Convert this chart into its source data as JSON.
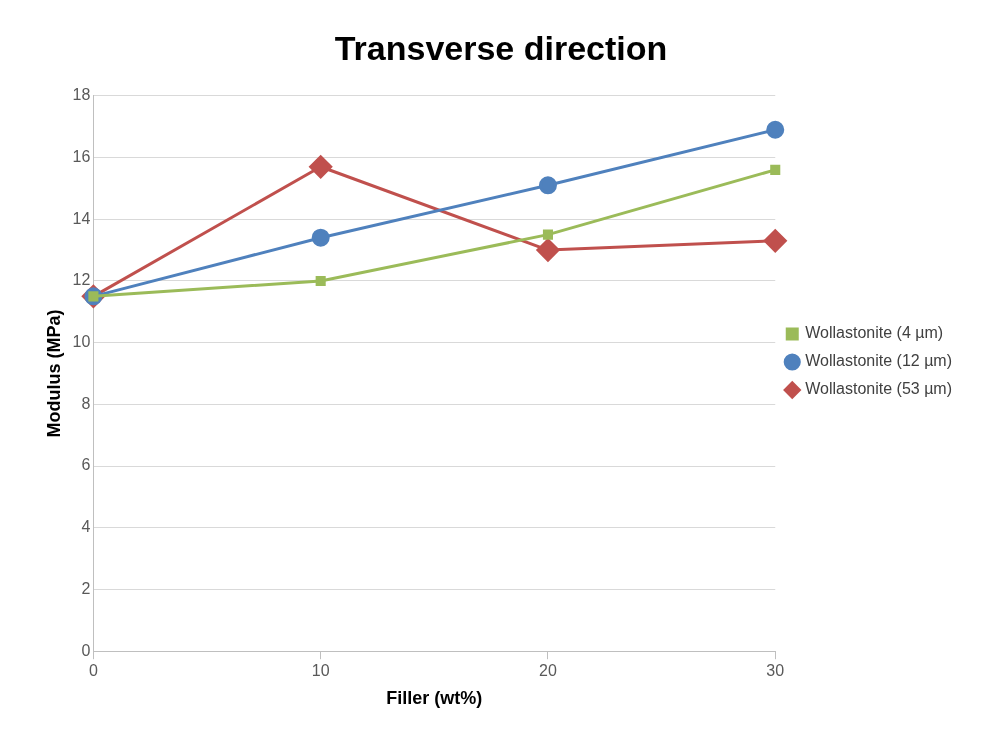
{
  "chart_data": {
    "type": "line",
    "title": "Transverse direction",
    "xlabel": "Filler (wt%)",
    "ylabel": "Modulus (MPa)",
    "x": [
      0,
      10,
      20,
      30
    ],
    "series": [
      {
        "name": "Wollastonite (4 µm)",
        "color": "#9bbb59",
        "marker": "square",
        "values": [
          11.5,
          12.0,
          13.5,
          15.6
        ]
      },
      {
        "name": "Wollastonite (12 µm)",
        "color": "#4f81bd",
        "marker": "circle",
        "values": [
          11.5,
          13.4,
          15.1,
          16.9
        ]
      },
      {
        "name": "Wollastonite (53 µm)",
        "color": "#c0504d",
        "marker": "diamond",
        "values": [
          11.5,
          15.7,
          13.0,
          13.3
        ]
      }
    ],
    "xlim": [
      0,
      30
    ],
    "xticks": [
      0,
      10,
      20,
      30
    ],
    "ylim": [
      0,
      18
    ],
    "yticks": [
      0,
      2,
      4,
      6,
      8,
      10,
      12,
      14,
      16,
      18
    ],
    "grid": "y",
    "legend": "right",
    "line_style": "solid"
  }
}
